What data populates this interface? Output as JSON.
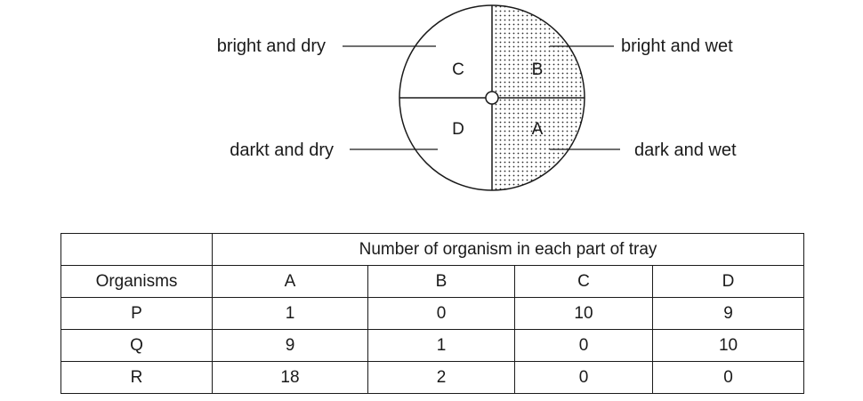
{
  "diagram": {
    "labels": {
      "top_left": "bright and dry",
      "top_right": "bright and wet",
      "bottom_left": "darkt and dry",
      "bottom_right": "dark and wet"
    },
    "sections": {
      "tl": "C",
      "tr": "B",
      "bl": "D",
      "br": "A"
    }
  },
  "table": {
    "header_span": "Number of organism in each part of tray",
    "header_row": [
      "Organisms",
      "A",
      "B",
      "C",
      "D"
    ],
    "rows": [
      [
        "P",
        "1",
        "0",
        "10",
        "9"
      ],
      [
        "Q",
        "9",
        "1",
        "0",
        "10"
      ],
      [
        "R",
        "18",
        "2",
        "0",
        "0"
      ]
    ]
  }
}
